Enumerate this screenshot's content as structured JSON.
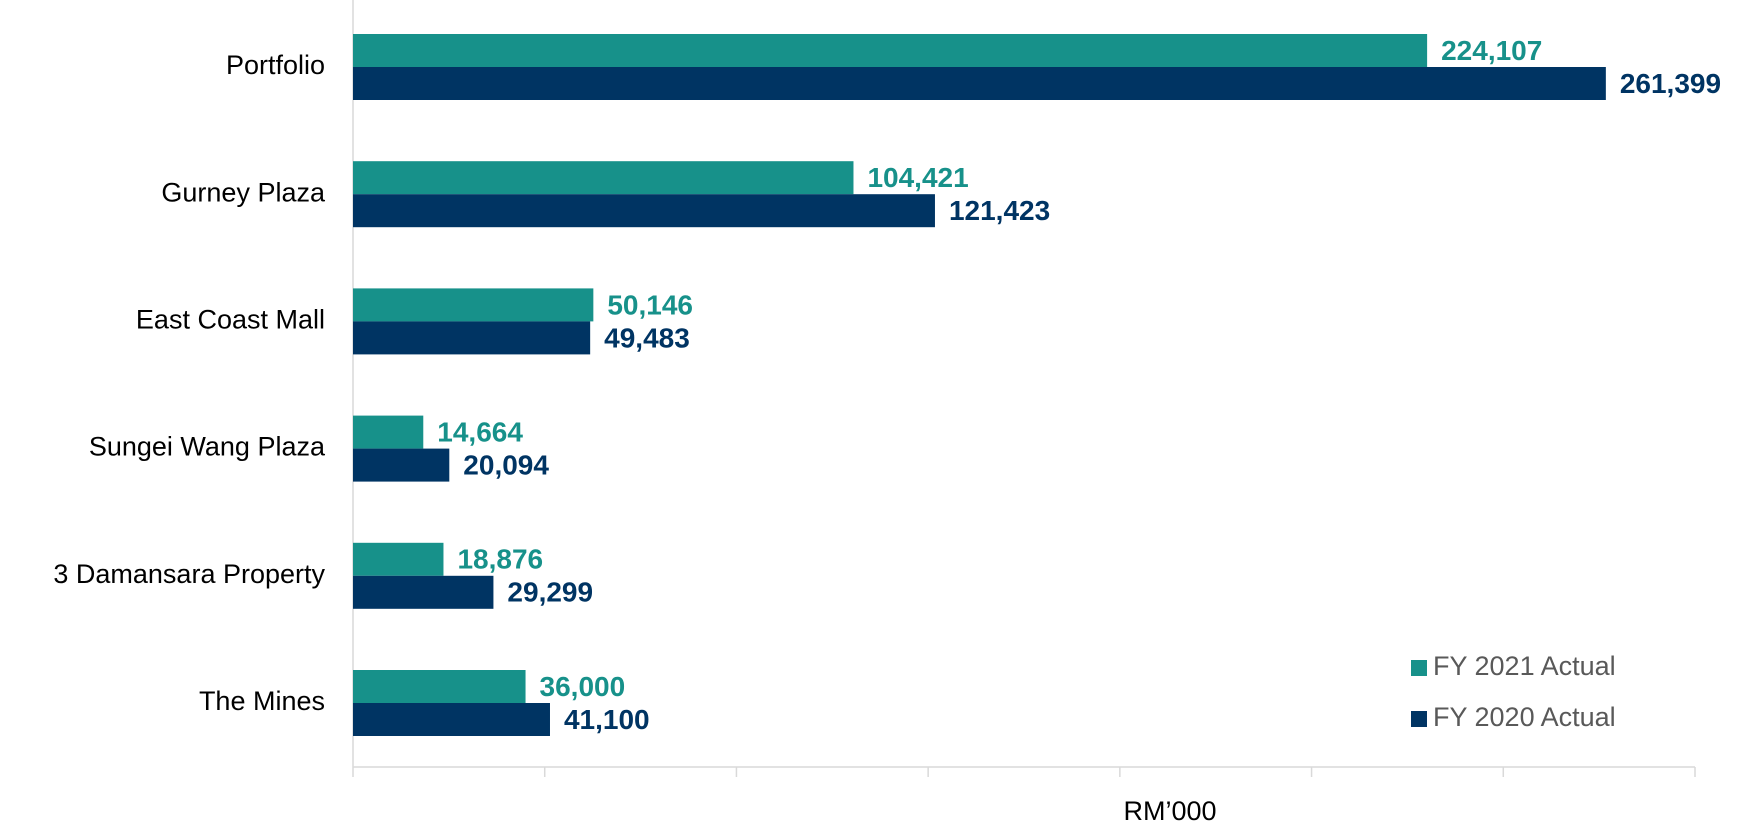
{
  "chart_data": {
    "type": "hbar",
    "x_label": "RM’000",
    "categories": [
      "Portfolio",
      "Gurney Plaza",
      "East Coast Mall",
      "Sungei Wang Plaza",
      "3 Damansara Property",
      "The Mines"
    ],
    "series": [
      {
        "name": "FY 2021 Actual",
        "color": "#17918a",
        "values": [
          224107,
          104421,
          50146,
          14664,
          18876,
          36000
        ],
        "value_labels": [
          "224,107",
          "104,421",
          "50,146",
          "14,664",
          "18,876",
          "36,000"
        ]
      },
      {
        "name": "FY 2020 Actual",
        "color": "#003463",
        "values": [
          261399,
          121423,
          49483,
          20094,
          29299,
          41100
        ],
        "value_labels": [
          "261,399",
          "121,423",
          "49,483",
          "20,094",
          "29,299",
          "41,100"
        ]
      }
    ],
    "xlim": [
      0,
      280000
    ],
    "xticks": [
      0,
      40000,
      80000,
      120000,
      160000,
      200000,
      240000,
      280000
    ],
    "legend": "lower right"
  }
}
